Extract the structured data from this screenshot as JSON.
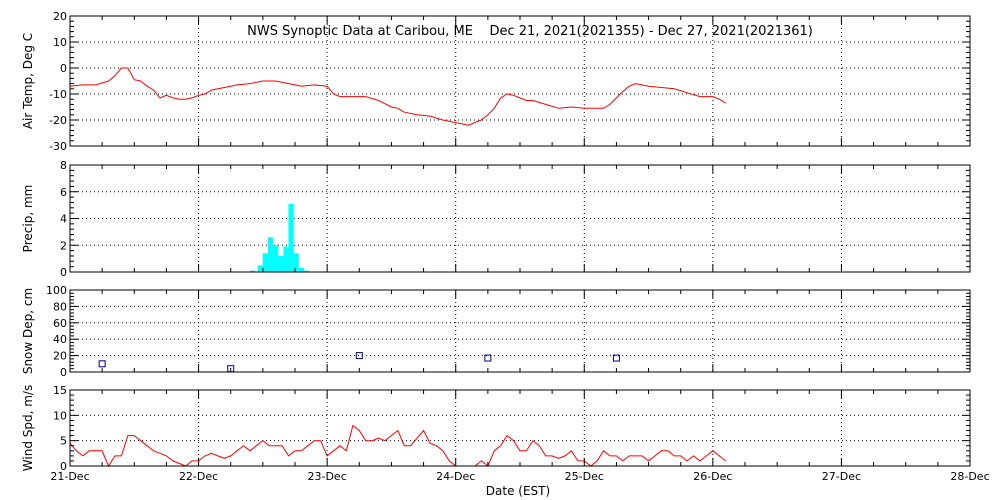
{
  "title": "NWS Synoptic Data at Caribou, ME    Dec 21, 2021(2021355) - Dec 27, 2021(2021361)",
  "xlabel": "Date (EST)",
  "x_tick_labels": [
    "21-Dec",
    "22-Dec",
    "23-Dec",
    "24-Dec",
    "25-Dec",
    "26-Dec",
    "27-Dec",
    "28-Dec"
  ],
  "chart_data": [
    {
      "type": "line",
      "ylabel": "Air Temp, Deg C",
      "ylim": [
        -30,
        20
      ],
      "yticks": [
        -30,
        -20,
        -10,
        0,
        10,
        20
      ],
      "color": "#ff0000",
      "x": [
        0.0,
        0.1,
        0.2,
        0.3,
        0.35,
        0.4,
        0.45,
        0.5,
        0.55,
        0.6,
        0.65,
        0.7,
        0.75,
        0.8,
        0.85,
        0.9,
        0.95,
        1.0,
        1.05,
        1.1,
        1.2,
        1.3,
        1.4,
        1.5,
        1.6,
        1.7,
        1.75,
        1.8,
        1.9,
        2.0,
        2.05,
        2.1,
        2.15,
        2.2,
        2.3,
        2.4,
        2.5,
        2.55,
        2.6,
        2.7,
        2.8,
        2.9,
        3.0,
        3.1,
        3.2,
        3.25,
        3.3,
        3.35,
        3.4,
        3.45,
        3.5,
        3.55,
        3.6,
        3.7,
        3.8,
        3.9,
        4.0,
        4.05,
        4.1,
        4.15,
        4.2,
        4.25,
        4.3,
        4.35,
        4.4,
        4.5,
        4.6,
        4.7,
        4.8,
        4.9,
        5.0,
        5.05,
        5.1
      ],
      "y": [
        -7,
        -6.5,
        -6.5,
        -5,
        -3,
        0,
        0,
        -4.5,
        -5,
        -7,
        -8.5,
        -11.5,
        -10.5,
        -11.5,
        -12,
        -12,
        -11.5,
        -10.5,
        -10,
        -8.5,
        -7.5,
        -6.5,
        -6,
        -5,
        -5,
        -6,
        -6.5,
        -7,
        -6.5,
        -7,
        -10,
        -11,
        -11,
        -11,
        -11,
        -12.5,
        -15,
        -15.5,
        -17,
        -18,
        -18.5,
        -20,
        -21,
        -22,
        -20,
        -18,
        -15.5,
        -11.5,
        -10,
        -10.5,
        -11.5,
        -12.5,
        -12.5,
        -14,
        -15.5,
        -15,
        -15.5,
        -15.5,
        -15.5,
        -15.5,
        -14,
        -11.5,
        -9,
        -7,
        -6,
        -7,
        -7.5,
        -8,
        -9.5,
        -11,
        -11,
        -12,
        -13.5
      ]
    },
    {
      "type": "bar",
      "ylabel": "Precip, mm",
      "ylim": [
        0,
        8
      ],
      "yticks": [
        0,
        2,
        4,
        6,
        8
      ],
      "color": "#00ffff",
      "bar_width": 0.04,
      "x": [
        1.4,
        1.46,
        1.5,
        1.54,
        1.58,
        1.62,
        1.66,
        1.7,
        1.74,
        1.78,
        1.82,
        1.86
      ],
      "values": [
        0.1,
        0.5,
        1.4,
        2.6,
        2,
        1.2,
        1.9,
        5.1,
        1.4,
        0.3,
        0.1,
        0
      ]
    },
    {
      "type": "scatter",
      "ylabel": "Snow Dep, cm",
      "ylim": [
        0,
        100
      ],
      "yticks": [
        0,
        20,
        40,
        60,
        80,
        100
      ],
      "color": "#000080",
      "x": [
        0.25,
        1.25,
        2.25,
        3.25,
        4.25
      ],
      "y": [
        10,
        4,
        20,
        17,
        17
      ]
    },
    {
      "type": "line",
      "ylabel": "Wind Spd, m/s",
      "ylim": [
        0,
        15
      ],
      "yticks": [
        0,
        5,
        10,
        15
      ],
      "color": "#ff0000",
      "x": [
        0.0,
        0.05,
        0.1,
        0.15,
        0.2,
        0.25,
        0.3,
        0.35,
        0.4,
        0.45,
        0.5,
        0.55,
        0.6,
        0.65,
        0.7,
        0.75,
        0.8,
        0.85,
        0.9,
        0.95,
        1.0,
        1.05,
        1.1,
        1.15,
        1.2,
        1.25,
        1.3,
        1.35,
        1.4,
        1.45,
        1.5,
        1.55,
        1.6,
        1.65,
        1.7,
        1.75,
        1.8,
        1.85,
        1.9,
        1.95,
        2.0,
        2.05,
        2.1,
        2.15,
        2.2,
        2.25,
        2.3,
        2.35,
        2.4,
        2.45,
        2.5,
        2.55,
        2.6,
        2.65,
        2.7,
        2.75,
        2.8,
        2.85,
        2.9,
        2.95,
        3.0,
        3.05,
        3.1,
        3.15,
        3.2,
        3.25,
        3.3,
        3.35,
        3.4,
        3.45,
        3.5,
        3.55,
        3.6,
        3.65,
        3.7,
        3.75,
        3.8,
        3.85,
        3.9,
        3.95,
        4.0,
        4.05,
        4.1,
        4.15,
        4.2,
        4.25,
        4.3,
        4.35,
        4.4,
        4.45,
        4.5,
        4.55,
        4.6,
        4.65,
        4.7,
        4.75,
        4.8,
        4.85,
        4.9,
        4.95,
        5.0,
        5.05,
        5.1
      ],
      "y": [
        4.5,
        3,
        2,
        3,
        3,
        3,
        0,
        2,
        2,
        6,
        6,
        5,
        4,
        3,
        2.5,
        2,
        1,
        0.5,
        0,
        1,
        1,
        2,
        2.5,
        2,
        1.5,
        2,
        3,
        4,
        3,
        4,
        5,
        4,
        4,
        4,
        2,
        3,
        3,
        4,
        5,
        5,
        2,
        3,
        4,
        3,
        8,
        7,
        5,
        5,
        5.5,
        5,
        6,
        7,
        4,
        4,
        5.5,
        7,
        4.5,
        4,
        3,
        1,
        0,
        0,
        0,
        0,
        1,
        0,
        3,
        4,
        6,
        5,
        3,
        3,
        5,
        4,
        2,
        2,
        1.5,
        2,
        3,
        1,
        1,
        0,
        1,
        3,
        2,
        2,
        1,
        2,
        2,
        2,
        1,
        2,
        3,
        3,
        2,
        2,
        1,
        2,
        1,
        2,
        3,
        2,
        1
      ]
    }
  ]
}
